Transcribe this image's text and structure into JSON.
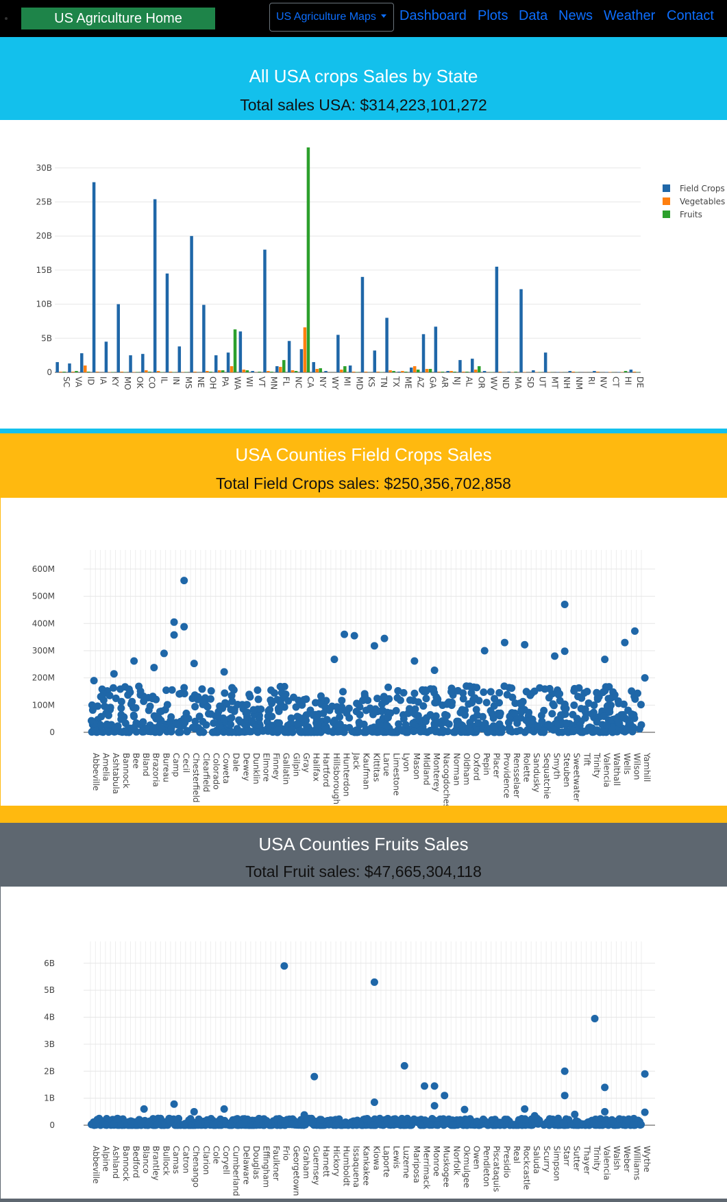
{
  "navbar": {
    "brand": "US Agriculture Home",
    "dropdown": "US Agriculture Maps",
    "links": [
      "Dashboard",
      "Plots",
      "Data",
      "News",
      "Weather",
      "Contact"
    ]
  },
  "colors": {
    "header_cyan": "#13c0ec",
    "header_amber": "#ffb90f",
    "header_gray": "#5e6770",
    "brand_green": "#1e8449",
    "link_blue": "#0d6efd",
    "field_crops": "#1f67a8",
    "vegetables": "#ff7f0e",
    "fruits": "#2ca02c"
  },
  "sections": {
    "state": {
      "title": "All USA crops Sales by State",
      "total": "Total sales USA: $314,223,101,272"
    },
    "field": {
      "title": "USA Counties Field Crops Sales",
      "total": "Total Field Crops sales: $250,356,702,858"
    },
    "fruit": {
      "title": "USA Counties Fruits Sales",
      "total": "Total Fruit sales: $47,665,304,118"
    }
  },
  "chart_data": [
    {
      "type": "bar",
      "title": "",
      "categories": [
        "SC",
        "VA",
        "ID",
        "IA",
        "KY",
        "MO",
        "OK",
        "CO",
        "IL",
        "IN",
        "MS",
        "NE",
        "OH",
        "PA",
        "WA",
        "WI",
        "VT",
        "MN",
        "FL",
        "NC",
        "CA",
        "NY",
        "WY",
        "MI",
        "MD",
        "KS",
        "TN",
        "TX",
        "ME",
        "AZ",
        "GA",
        "AR",
        "NJ",
        "AL",
        "OR",
        "WV",
        "ND",
        "MA",
        "SD",
        "UT",
        "MT",
        "NH",
        "NM",
        "RI",
        "NV",
        "CT",
        "HI",
        "DE"
      ],
      "ylim": [
        0,
        33
      ],
      "y_unit": "B",
      "y_ticks": [
        "0",
        "5B",
        "10B",
        "15B",
        "20B",
        "25B",
        "30B"
      ],
      "series": [
        {
          "name": "Field Crops",
          "color": "#1f67a8",
          "values": [
            1.5,
            1.3,
            2.8,
            27.9,
            4.5,
            10.0,
            2.5,
            2.7,
            25.4,
            14.5,
            3.8,
            20.0,
            9.9,
            2.5,
            2.9,
            6.0,
            0.2,
            18.0,
            0.9,
            4.6,
            3.4,
            1.5,
            0.2,
            5.5,
            1.0,
            14.0,
            3.2,
            8.0,
            0.1,
            0.7,
            5.6,
            6.7,
            0.2,
            1.8,
            2.0,
            0.2,
            15.5,
            0.1,
            12.2,
            0.3,
            2.9,
            0.05,
            0.2,
            0.01,
            0.2,
            0.05,
            0.05,
            0.4
          ]
        },
        {
          "name": "Vegetables",
          "color": "#ff7f0e",
          "values": [
            0.1,
            0.1,
            1.0,
            0.1,
            0.05,
            0.1,
            0.05,
            0.3,
            0.2,
            0.1,
            0.05,
            0.1,
            0.2,
            0.3,
            0.9,
            0.4,
            0.02,
            0.2,
            0.8,
            0.3,
            6.6,
            0.5,
            0.01,
            0.4,
            0.1,
            0.1,
            0.1,
            0.3,
            0.2,
            0.9,
            0.5,
            0.1,
            0.2,
            0.1,
            0.4,
            0.02,
            0.1,
            0.05,
            0.05,
            0.05,
            0.05,
            0.02,
            0.1,
            0.01,
            0.1,
            0.05,
            0.05,
            0.1
          ]
        },
        {
          "name": "Fruits",
          "color": "#2ca02c",
          "values": [
            0.1,
            0.2,
            0.1,
            0.0,
            0.05,
            0.05,
            0.05,
            0.1,
            0.05,
            0.05,
            0.05,
            0.02,
            0.1,
            0.3,
            6.3,
            0.3,
            0.1,
            0.1,
            1.8,
            0.2,
            33.0,
            0.6,
            0.01,
            0.9,
            0.05,
            0.02,
            0.05,
            0.2,
            0.1,
            0.4,
            0.5,
            0.1,
            0.1,
            0.1,
            0.9,
            0.05,
            0.01,
            0.1,
            0.01,
            0.05,
            0.02,
            0.02,
            0.05,
            0.01,
            0.01,
            0.02,
            0.2,
            0.05
          ]
        }
      ],
      "legend": "right"
    },
    {
      "type": "scatter",
      "title": "",
      "ylim": [
        0,
        620
      ],
      "y_unit": "M",
      "y_ticks": [
        "0",
        "100M",
        "200M",
        "300M",
        "400M",
        "500M",
        "600M"
      ],
      "x_ticks": [
        "Abbeville",
        "Amelia",
        "Ashtabula",
        "Bannock",
        "Bee",
        "Bland",
        "Brazoria",
        "Bureau",
        "Camp",
        "Cecil",
        "Chesterfield",
        "Clearfield",
        "Colorado",
        "Coweta",
        "Dale",
        "Dewey",
        "Dunklin",
        "Elmore",
        "Finney",
        "Gallatin",
        "Gilpin",
        "Gray",
        "Halifax",
        "Hartford",
        "Hillsborough",
        "Hunterdon",
        "Jack",
        "Kaufman",
        "Kittitas",
        "Larue",
        "Limestone",
        "Lyon",
        "Mason",
        "Midland",
        "Monterey",
        "Nacogdoches",
        "Norman",
        "Oldham",
        "Oxford",
        "Pepin",
        "Placer",
        "Providence",
        "Rensselaer",
        "Rolette",
        "Sandusky",
        "Sequatchie",
        "Smyth",
        "Steuben",
        "Sweetwater",
        "Tift",
        "Trinity",
        "Valencia",
        "Walthall",
        "Wells",
        "Wilson",
        "Yamhill"
      ],
      "highlight_points": [
        {
          "x": "Abbeville",
          "y": 190
        },
        {
          "x": "Ashtabula",
          "y": 215
        },
        {
          "x": "Bee",
          "y": 262
        },
        {
          "x": "Brazoria",
          "y": 238
        },
        {
          "x": "Bureau",
          "y": 290
        },
        {
          "x": "Camp",
          "y": 405
        },
        {
          "x": "Camp",
          "y": 358
        },
        {
          "x": "Cecil",
          "y": 558
        },
        {
          "x": "Cecil",
          "y": 388
        },
        {
          "x": "Chesterfield",
          "y": 253
        },
        {
          "x": "Coweta",
          "y": 222
        },
        {
          "x": "Hillsborough",
          "y": 268
        },
        {
          "x": "Hunterdon",
          "y": 360
        },
        {
          "x": "Jack",
          "y": 355
        },
        {
          "x": "Kittitas",
          "y": 318
        },
        {
          "x": "Larue",
          "y": 345
        },
        {
          "x": "Mason",
          "y": 262
        },
        {
          "x": "Monterey",
          "y": 228
        },
        {
          "x": "Pepin",
          "y": 300
        },
        {
          "x": "Providence",
          "y": 330
        },
        {
          "x": "Rolette",
          "y": 322
        },
        {
          "x": "Smyth",
          "y": 280
        },
        {
          "x": "Steuben",
          "y": 298
        },
        {
          "x": "Steuben",
          "y": 470
        },
        {
          "x": "Valencia",
          "y": 268
        },
        {
          "x": "Wells",
          "y": 330
        },
        {
          "x": "Wilson",
          "y": 372
        },
        {
          "x": "Yamhill",
          "y": 200
        }
      ]
    },
    {
      "type": "scatter",
      "title": "",
      "ylim": [
        0,
        6.3
      ],
      "y_unit": "B",
      "y_ticks": [
        "0",
        "1B",
        "2B",
        "3B",
        "4B",
        "5B",
        "6B"
      ],
      "x_ticks": [
        "Abbeville",
        "Alpine",
        "Ashland",
        "Bannock",
        "Bedford",
        "Blanco",
        "Brantley",
        "Bullock",
        "Camas",
        "Catron",
        "Chenango",
        "Clarion",
        "Cole",
        "Coryell",
        "Cumberland",
        "Delaware",
        "Douglas",
        "Effingham",
        "Faulkner",
        "Frio",
        "Georgetown",
        "Graham",
        "Guernsey",
        "Harnett",
        "Hickory",
        "Humboldt",
        "Issaquena",
        "Kankakee",
        "Kiowa",
        "Laporte",
        "Lewis",
        "Luzerne",
        "Mariposa",
        "Merrimack",
        "Monroe",
        "Muskogee",
        "Norfolk",
        "Okmulgee",
        "Owen",
        "Pendleton",
        "Piscataquis",
        "Presidio",
        "Real",
        "Rockcastle",
        "Saluda",
        "Scurry",
        "Simpson",
        "Starr",
        "Sutter",
        "Thayer",
        "Trinity",
        "Valencia",
        "Walsh",
        "Weber",
        "Williams",
        "Wythe"
      ],
      "highlight_points": [
        {
          "x": "Blanco",
          "y": 0.6
        },
        {
          "x": "Camas",
          "y": 0.78
        },
        {
          "x": "Chenango",
          "y": 0.5
        },
        {
          "x": "Coryell",
          "y": 0.6
        },
        {
          "x": "Frio",
          "y": 5.9
        },
        {
          "x": "Graham",
          "y": 0.38
        },
        {
          "x": "Guernsey",
          "y": 1.8
        },
        {
          "x": "Kiowa",
          "y": 5.3
        },
        {
          "x": "Kiowa",
          "y": 0.85
        },
        {
          "x": "Luzerne",
          "y": 2.2
        },
        {
          "x": "Merrimack",
          "y": 1.45
        },
        {
          "x": "Monroe",
          "y": 1.45
        },
        {
          "x": "Monroe",
          "y": 0.72
        },
        {
          "x": "Muskogee",
          "y": 1.1
        },
        {
          "x": "Okmulgee",
          "y": 0.58
        },
        {
          "x": "Rockcastle",
          "y": 0.6
        },
        {
          "x": "Saluda",
          "y": 0.35
        },
        {
          "x": "Starr",
          "y": 2.0
        },
        {
          "x": "Starr",
          "y": 1.1
        },
        {
          "x": "Sutter",
          "y": 0.4
        },
        {
          "x": "Trinity",
          "y": 3.95
        },
        {
          "x": "Valencia",
          "y": 1.4
        },
        {
          "x": "Valencia",
          "y": 0.5
        },
        {
          "x": "Wythe",
          "y": 1.9
        },
        {
          "x": "Wythe",
          "y": 0.48
        }
      ]
    }
  ]
}
